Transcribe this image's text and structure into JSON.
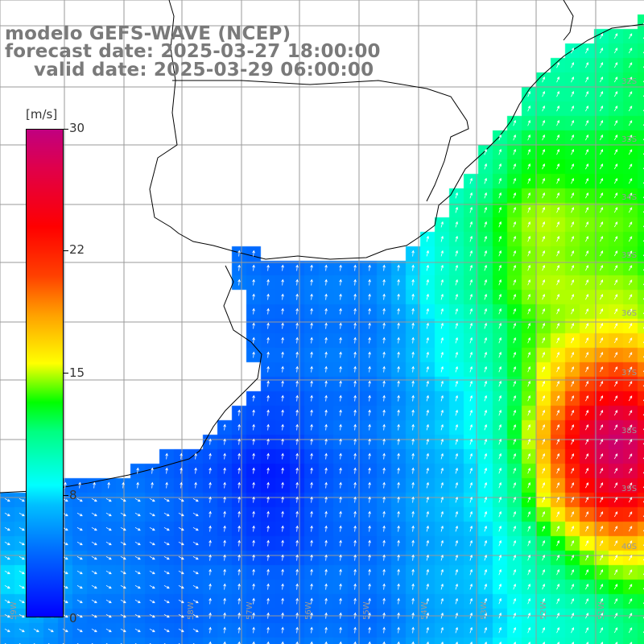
{
  "map": {
    "title_model": "modelo GEFS-WAVE (NCEP)",
    "title_forecast": "forecast date: 2025-03-27 18:00:00",
    "title_valid": "valid date: 2025-03-29 06:00:00",
    "field": "wind speed with direction vectors",
    "colorbar": {
      "unit": "[m/s]",
      "ticks": [
        "30",
        "22",
        "15",
        "8",
        "0"
      ],
      "min": 0,
      "max": 30
    },
    "lat_labels": [
      "32S",
      "33S",
      "34S",
      "35S",
      "36S",
      "37S",
      "38S",
      "39S",
      "40S"
    ],
    "lon_labels": [
      "59W",
      "58W",
      "57W",
      "56W",
      "55W",
      "54W",
      "53W",
      "52W",
      "51W"
    ],
    "colors": {
      "land": "#ffffff",
      "coast": "#000000",
      "grid": "#9a9a9a",
      "title": "#7a7a7a",
      "arrow": "#ffffff"
    }
  }
}
